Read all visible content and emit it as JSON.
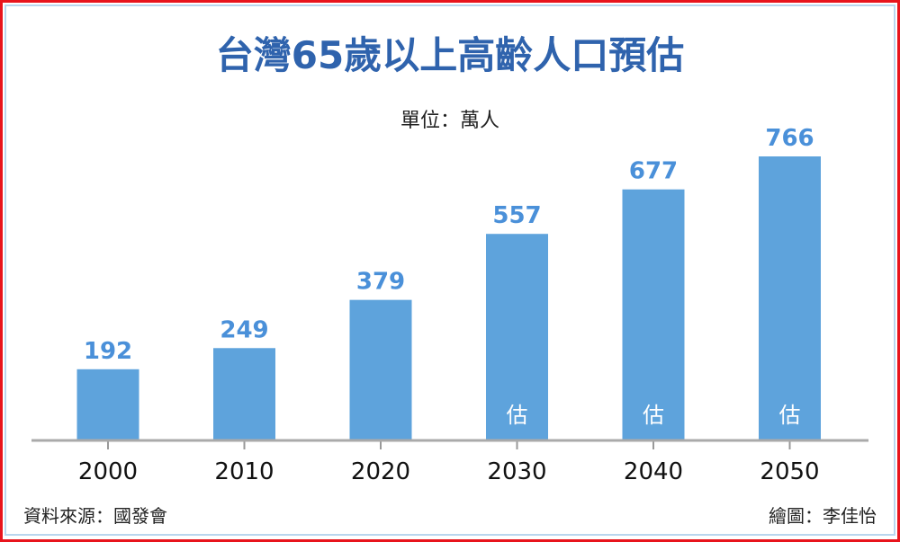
{
  "title": "台灣65歲以上高齡人口預估",
  "unit_label": "單位：萬人",
  "source": "資料來源：國發會",
  "credit": "繪圖：李佳怡",
  "colors": {
    "bar": "#5ea3dc",
    "value_label": "#4a90d9",
    "title": "#2f63ad"
  },
  "chart_data": {
    "type": "bar",
    "title": "台灣65歲以上高齡人口預估",
    "ylabel": "單位：萬人",
    "xlabel": "",
    "categories": [
      "2000",
      "2010",
      "2020",
      "2030",
      "2040",
      "2050"
    ],
    "values": [
      192,
      249,
      379,
      557,
      677,
      766
    ],
    "estimate_flags": [
      false,
      false,
      false,
      true,
      true,
      true
    ],
    "estimate_label": "估",
    "ylim": [
      0,
      766
    ],
    "grid": false
  }
}
